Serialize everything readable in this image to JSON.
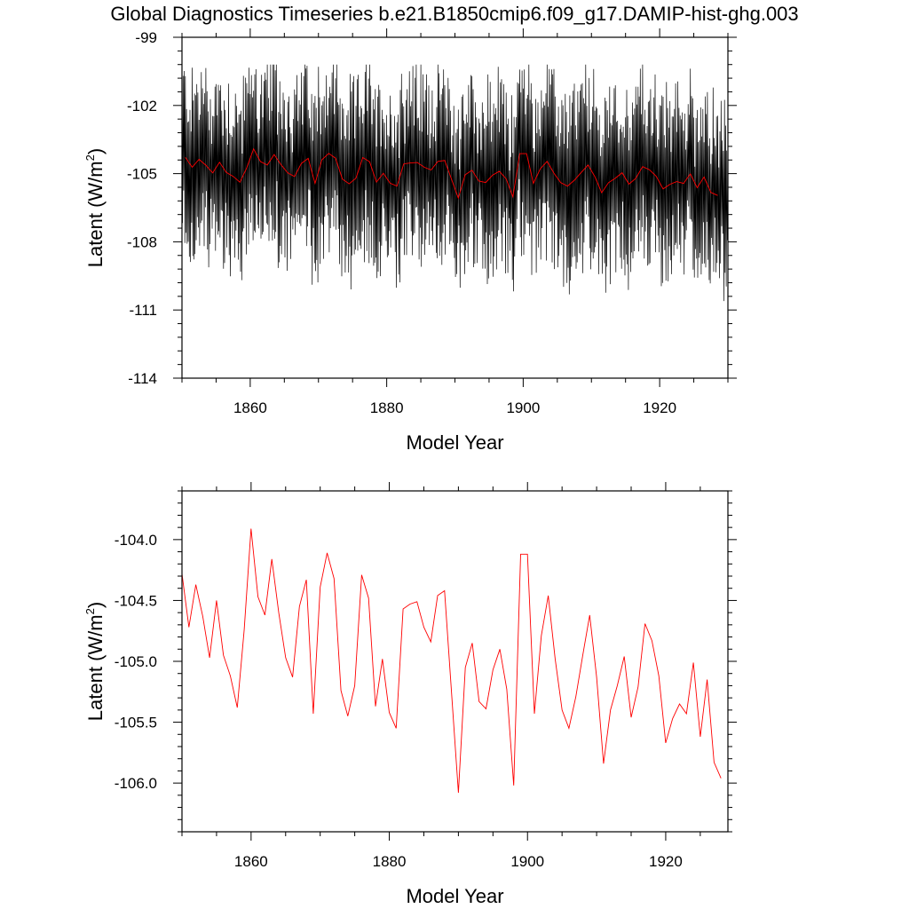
{
  "figure": {
    "title": "Global Diagnostics Timeseries b.e21.B1850cmip6.f09_g17.DAMIP-hist-ghg.003"
  },
  "chart_data": [
    {
      "type": "line",
      "xlabel": "Model Year",
      "ylabel": "Latent (W/m²)",
      "ylabel_main": "Latent (W/m",
      "ylabel_sup": "2",
      "ylabel_close": ")",
      "xlim": [
        1850,
        1930
      ],
      "ylim": [
        -114,
        -99
      ],
      "xticks": [
        1860,
        1880,
        1900,
        1920
      ],
      "yticks": [
        -114,
        -111,
        -108,
        -105,
        -102,
        -99
      ],
      "ytick_labels": [
        "-114",
        "-111",
        "-108",
        "-105",
        "-102",
        "-99"
      ],
      "grid": false,
      "colors": {
        "monthly": "#000000",
        "annual": "#ff0000"
      },
      "monthly_start_year": 1850,
      "monthly_span": [
        -110.5,
        -100.5
      ]
    },
    {
      "type": "line",
      "xlabel": "Model Year",
      "ylabel": "Latent (W/m²)",
      "ylabel_main": "Latent (W/m",
      "ylabel_sup": "2",
      "ylabel_close": ")",
      "xlim": [
        1850,
        1929
      ],
      "ylim": [
        -106.4,
        -103.6
      ],
      "xticks": [
        1860,
        1880,
        1900,
        1920
      ],
      "yticks": [
        -106.0,
        -105.5,
        -105.0,
        -104.5,
        -104.0
      ],
      "ytick_labels": [
        "-106.0",
        "-105.5",
        "-105.0",
        "-104.5",
        "-104.0"
      ],
      "grid": false,
      "colors": {
        "annual": "#ff0000"
      },
      "annual_start_year": 1850,
      "annual_values": [
        -104.28,
        -104.72,
        -104.37,
        -104.63,
        -104.97,
        -104.5,
        -104.95,
        -105.12,
        -105.38,
        -104.74,
        -103.91,
        -104.47,
        -104.62,
        -104.16,
        -104.6,
        -104.97,
        -105.13,
        -104.55,
        -104.33,
        -105.43,
        -104.39,
        -104.11,
        -104.32,
        -105.24,
        -105.45,
        -105.2,
        -104.29,
        -104.48,
        -105.37,
        -104.98,
        -105.42,
        -105.55,
        -104.57,
        -104.53,
        -104.51,
        -104.72,
        -104.84,
        -104.46,
        -104.42,
        -105.25,
        -106.08,
        -105.05,
        -104.85,
        -105.33,
        -105.39,
        -105.07,
        -104.9,
        -105.23,
        -106.02,
        -104.12,
        -104.12,
        -105.43,
        -104.79,
        -104.46,
        -104.98,
        -105.4,
        -105.55,
        -105.29,
        -104.95,
        -104.62,
        -105.13,
        -105.84,
        -105.4,
        -105.2,
        -104.96,
        -105.46,
        -105.21,
        -104.69,
        -104.83,
        -105.12,
        -105.67,
        -105.47,
        -105.35,
        -105.43,
        -105.01,
        -105.62,
        -105.15,
        -105.83,
        -105.96
      ]
    }
  ]
}
